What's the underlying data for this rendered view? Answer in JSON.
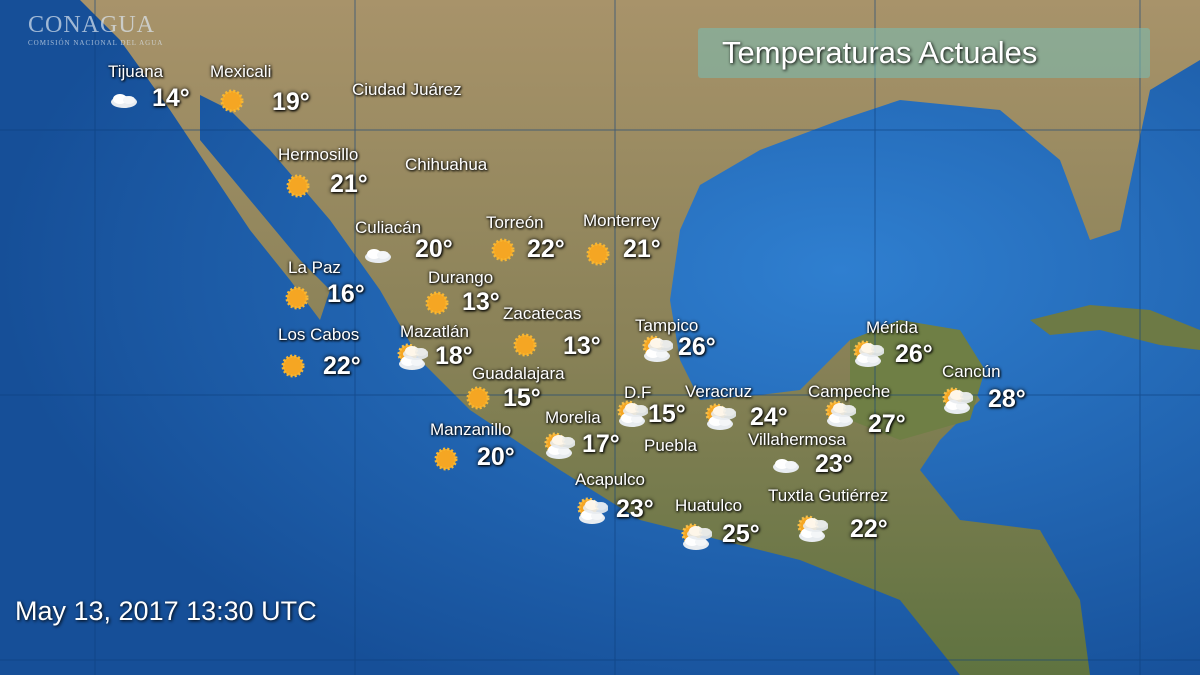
{
  "logo": {
    "name": "CONAGUA",
    "subtitle": "COMISIÓN NACIONAL DEL AGUA"
  },
  "title": "Temperaturas Actuales",
  "date": "May 13, 2017 13:30 UTC",
  "colors": {
    "ocean": "#1b5fae",
    "land": "#9a8a62",
    "lowland": "#6d7a45",
    "title_box": "#78beb4"
  },
  "cities": [
    {
      "name": "Tijuana",
      "temp": "14°",
      "icon": "cloudy"
    },
    {
      "name": "Mexicali",
      "temp": "19°",
      "icon": "sunny"
    },
    {
      "name": "Hermosillo",
      "temp": "21°",
      "icon": "sunny"
    },
    {
      "name": "Culiacán",
      "temp": "20°",
      "icon": "cloudy"
    },
    {
      "name": "Torreón",
      "temp": "22°",
      "icon": "sunny"
    },
    {
      "name": "Monterrey",
      "temp": "21°",
      "icon": "sunny"
    },
    {
      "name": "La Paz",
      "temp": "16°",
      "icon": "sunny"
    },
    {
      "name": "Durango",
      "temp": "13°",
      "icon": "sunny"
    },
    {
      "name": "Zacatecas",
      "temp": "13°",
      "icon": "sunny"
    },
    {
      "name": "Tampico",
      "temp": "26°",
      "icon": "partly-cloudy"
    },
    {
      "name": "Los Cabos",
      "temp": "22°",
      "icon": "sunny"
    },
    {
      "name": "Mazatlán",
      "temp": "18°",
      "icon": "partly-cloudy"
    },
    {
      "name": "Guadalajara",
      "temp": "15°",
      "icon": "sunny"
    },
    {
      "name": "Mérida",
      "temp": "26°",
      "icon": "partly-cloudy"
    },
    {
      "name": "Cancún",
      "temp": "28°",
      "icon": "partly-cloudy"
    },
    {
      "name": "D.F",
      "temp": "15°",
      "icon": "partly-cloudy"
    },
    {
      "name": "Veracruz",
      "temp": "24°",
      "icon": "partly-cloudy"
    },
    {
      "name": "Campeche",
      "temp": "27°",
      "icon": "partly-cloudy"
    },
    {
      "name": "Morelia",
      "temp": "17°",
      "icon": "partly-cloudy"
    },
    {
      "name": "Villahermosa",
      "temp": "23°",
      "icon": "cloudy"
    },
    {
      "name": "Manzanillo",
      "temp": "20°",
      "icon": "sunny"
    },
    {
      "name": "Acapulco",
      "temp": "23°",
      "icon": "partly-cloudy"
    },
    {
      "name": "Huatulco",
      "temp": "25°",
      "icon": "partly-cloudy"
    },
    {
      "name": "Tuxtla Gutiérrez",
      "temp": "22°",
      "icon": "partly-cloudy"
    }
  ],
  "places": [
    "Ciudad Juárez",
    "Chihuahua",
    "Puebla"
  ]
}
